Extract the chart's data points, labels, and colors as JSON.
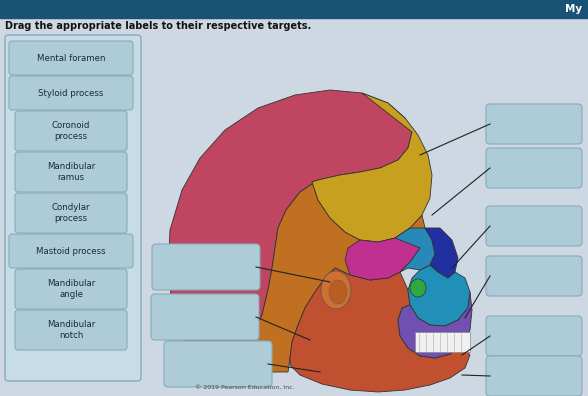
{
  "title": "Drag the appropriate labels to their respective targets.",
  "bg_color": "#cdd8e3",
  "header_color": "#1a5276",
  "header_text": "My",
  "header_text_color": "#ffffff",
  "left_labels": [
    "Mental foramen",
    "Styloid process",
    "Coronoid\nprocess",
    "Mandibular\nramus",
    "Condylar\nprocess",
    "Mastoid process",
    "Mandibular\nangle",
    "Mandibular\nnotch"
  ],
  "label_box_color": "#aeccd8",
  "label_box_edge": "#88aabb",
  "label_text_color": "#1a2a3a",
  "empty_box_color": "#aeccd8",
  "empty_box_edge": "#88aabb",
  "copyright": "© 2019 Pearson Education, Inc."
}
